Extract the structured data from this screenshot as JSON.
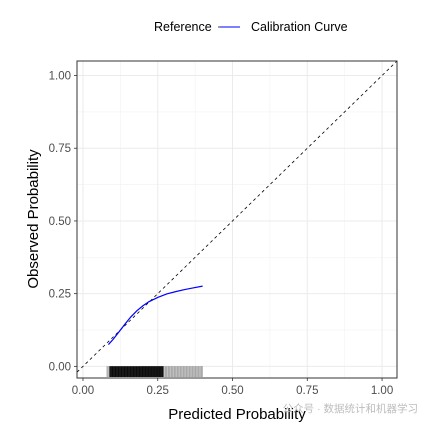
{
  "chart_data": {
    "type": "line",
    "xlabel": "Predicted Probability",
    "ylabel": "Observed Probability",
    "xlim": [
      -0.02,
      1.05
    ],
    "ylim": [
      -0.04,
      1.05
    ],
    "x_ticks": [
      "0.00",
      "0.25",
      "0.50",
      "0.75",
      "1.00"
    ],
    "y_ticks": [
      "0.00",
      "0.25",
      "0.50",
      "0.75",
      "1.00"
    ],
    "x_tick_values": [
      0,
      0.25,
      0.5,
      0.75,
      1
    ],
    "y_tick_values": [
      0,
      0.25,
      0.5,
      0.75,
      1
    ],
    "grid": true,
    "legend_position": "top",
    "legend": [
      {
        "label": "Reference",
        "style": "dashed",
        "color": "#000000"
      },
      {
        "label": "Calibration Curve",
        "style": "solid",
        "color": "#0000ff"
      }
    ],
    "series": [
      {
        "name": "Reference",
        "style": "dashed",
        "color": "#000000",
        "x": [
          -0.02,
          1.05
        ],
        "y": [
          -0.02,
          1.05
        ]
      },
      {
        "name": "Calibration Curve",
        "style": "solid",
        "color": "#0000ff",
        "x": [
          0.085,
          0.1,
          0.12,
          0.14,
          0.16,
          0.18,
          0.2,
          0.22,
          0.25,
          0.28,
          0.31,
          0.34,
          0.37,
          0.4
        ],
        "y": [
          0.075,
          0.092,
          0.118,
          0.145,
          0.17,
          0.191,
          0.208,
          0.222,
          0.237,
          0.249,
          0.257,
          0.264,
          0.27,
          0.276
        ]
      }
    ],
    "rug": {
      "y": -0.02,
      "color": "#000000",
      "x_min": 0.08,
      "x_max": 0.4,
      "dense_min": 0.09,
      "dense_max": 0.27
    }
  },
  "watermark": "公众号 · 数据统计和机器学习"
}
